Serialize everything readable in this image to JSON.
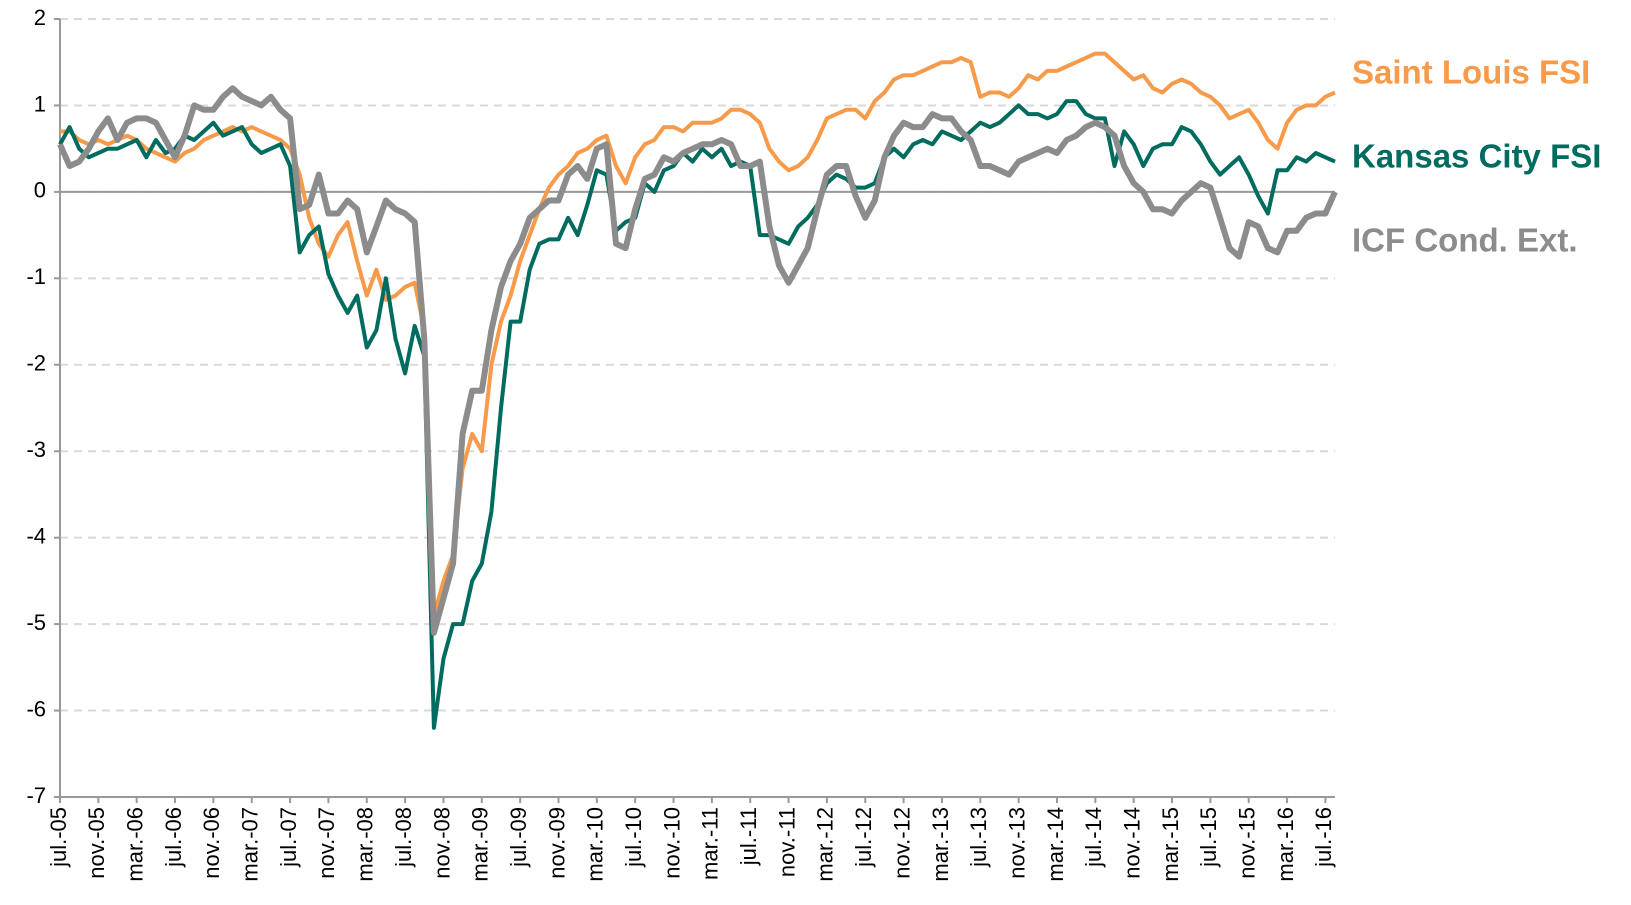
{
  "chart_data": {
    "type": "line",
    "categories": [
      "jul.-05",
      null,
      null,
      null,
      "nov.-05",
      null,
      null,
      null,
      "mar.-06",
      null,
      null,
      null,
      "jul.-06",
      null,
      null,
      null,
      "nov.-06",
      null,
      null,
      null,
      "mar.-07",
      null,
      null,
      null,
      "jul.-07",
      null,
      null,
      null,
      "nov.-07",
      null,
      null,
      null,
      "mar.-08",
      null,
      null,
      null,
      "jul.-08",
      null,
      null,
      null,
      "nov.-08",
      null,
      null,
      null,
      "mar.-09",
      null,
      null,
      null,
      "jul.-09",
      null,
      null,
      null,
      "nov.-09",
      null,
      null,
      null,
      "mar.-10",
      null,
      null,
      null,
      "jul.-10",
      null,
      null,
      null,
      "nov.-10",
      null,
      null,
      null,
      "mar.-11",
      null,
      null,
      null,
      "jul.-11",
      null,
      null,
      null,
      "nov.-11",
      null,
      null,
      null,
      "mar.-12",
      null,
      null,
      null,
      "jul.-12",
      null,
      null,
      null,
      "nov.-12",
      null,
      null,
      null,
      "mar.-13",
      null,
      null,
      null,
      "jul.-13",
      null,
      null,
      null,
      "nov.-13",
      null,
      null,
      null,
      "mar.-14",
      null,
      null,
      null,
      "jul.-14",
      null,
      null,
      null,
      "nov.-14",
      null,
      null,
      null,
      "mar.-15",
      null,
      null,
      null,
      "jul.-15",
      null,
      null,
      null,
      "nov.-15",
      null,
      null,
      null,
      "mar.-16",
      null,
      null,
      null,
      "jul.-16",
      null
    ],
    "series": [
      {
        "name": "Saint Louis FSI",
        "color": "#f79a4a",
        "width": 4,
        "values": [
          0.7,
          0.7,
          0.6,
          0.55,
          0.6,
          0.55,
          0.6,
          0.65,
          0.6,
          0.5,
          0.45,
          0.4,
          0.35,
          0.45,
          0.5,
          0.6,
          0.65,
          0.7,
          0.75,
          0.7,
          0.75,
          0.7,
          0.65,
          0.6,
          0.5,
          0.2,
          -0.3,
          -0.6,
          -0.75,
          -0.5,
          -0.35,
          -0.8,
          -1.2,
          -0.9,
          -1.25,
          -1.2,
          -1.1,
          -1.05,
          -1.6,
          -4.9,
          -4.5,
          -4.2,
          -3.2,
          -2.8,
          -3.0,
          -2.0,
          -1.5,
          -1.2,
          -0.8,
          -0.5,
          -0.2,
          0.05,
          0.2,
          0.3,
          0.45,
          0.5,
          0.6,
          0.65,
          0.3,
          0.1,
          0.4,
          0.55,
          0.6,
          0.75,
          0.75,
          0.7,
          0.8,
          0.8,
          0.8,
          0.85,
          0.95,
          0.95,
          0.9,
          0.8,
          0.5,
          0.35,
          0.25,
          0.3,
          0.4,
          0.6,
          0.85,
          0.9,
          0.95,
          0.95,
          0.85,
          1.05,
          1.15,
          1.3,
          1.35,
          1.35,
          1.4,
          1.45,
          1.5,
          1.5,
          1.55,
          1.5,
          1.1,
          1.15,
          1.15,
          1.1,
          1.2,
          1.35,
          1.3,
          1.4,
          1.4,
          1.45,
          1.5,
          1.55,
          1.6,
          1.6,
          1.5,
          1.4,
          1.3,
          1.35,
          1.2,
          1.15,
          1.25,
          1.3,
          1.25,
          1.15,
          1.1,
          1.0,
          0.85,
          0.9,
          0.95,
          0.8,
          0.6,
          0.5,
          0.8,
          0.95,
          1.0,
          1.0,
          1.1,
          1.15
        ]
      },
      {
        "name": "Kansas City FSI",
        "color": "#006b5f",
        "width": 4,
        "values": [
          0.55,
          0.75,
          0.5,
          0.4,
          0.45,
          0.5,
          0.5,
          0.55,
          0.6,
          0.4,
          0.6,
          0.45,
          0.5,
          0.65,
          0.6,
          0.7,
          0.8,
          0.65,
          0.7,
          0.75,
          0.55,
          0.45,
          0.5,
          0.55,
          0.3,
          -0.7,
          -0.5,
          -0.4,
          -0.95,
          -1.2,
          -1.4,
          -1.2,
          -1.8,
          -1.6,
          -1.0,
          -1.7,
          -2.1,
          -1.55,
          -1.9,
          -6.2,
          -5.4,
          -5.0,
          -5.0,
          -4.5,
          -4.3,
          -3.7,
          -2.5,
          -1.5,
          -1.5,
          -0.9,
          -0.6,
          -0.55,
          -0.55,
          -0.3,
          -0.5,
          -0.15,
          0.25,
          0.2,
          -0.45,
          -0.35,
          -0.3,
          0.1,
          0.0,
          0.25,
          0.3,
          0.45,
          0.35,
          0.5,
          0.4,
          0.5,
          0.3,
          0.35,
          0.3,
          -0.5,
          -0.5,
          -0.55,
          -0.6,
          -0.4,
          -0.3,
          -0.15,
          0.1,
          0.2,
          0.15,
          0.05,
          0.05,
          0.1,
          0.4,
          0.5,
          0.4,
          0.55,
          0.6,
          0.55,
          0.7,
          0.65,
          0.6,
          0.7,
          0.8,
          0.75,
          0.8,
          0.9,
          1.0,
          0.9,
          0.9,
          0.85,
          0.9,
          1.05,
          1.05,
          0.9,
          0.85,
          0.85,
          0.3,
          0.7,
          0.55,
          0.3,
          0.5,
          0.55,
          0.55,
          0.75,
          0.7,
          0.55,
          0.35,
          0.2,
          0.3,
          0.4,
          0.2,
          -0.05,
          -0.25,
          0.25,
          0.25,
          0.4,
          0.35,
          0.45,
          0.4,
          0.35
        ]
      },
      {
        "name": "ICF Cond. Ext.",
        "color": "#8c8c8c",
        "width": 6,
        "values": [
          0.55,
          0.3,
          0.35,
          0.5,
          0.7,
          0.85,
          0.6,
          0.8,
          0.85,
          0.85,
          0.8,
          0.6,
          0.4,
          0.65,
          1.0,
          0.95,
          0.95,
          1.1,
          1.2,
          1.1,
          1.05,
          1.0,
          1.1,
          0.95,
          0.85,
          -0.2,
          -0.15,
          0.2,
          -0.25,
          -0.25,
          -0.1,
          -0.2,
          -0.7,
          -0.4,
          -0.1,
          -0.2,
          -0.25,
          -0.35,
          -1.7,
          -5.1,
          -4.7,
          -4.3,
          -2.8,
          -2.3,
          -2.3,
          -1.6,
          -1.1,
          -0.8,
          -0.6,
          -0.3,
          -0.2,
          -0.1,
          -0.1,
          0.2,
          0.3,
          0.15,
          0.5,
          0.55,
          -0.6,
          -0.65,
          -0.2,
          0.15,
          0.2,
          0.4,
          0.35,
          0.45,
          0.5,
          0.55,
          0.55,
          0.6,
          0.55,
          0.3,
          0.3,
          0.35,
          -0.4,
          -0.85,
          -1.05,
          -0.85,
          -0.65,
          -0.2,
          0.2,
          0.3,
          0.3,
          -0.05,
          -0.3,
          -0.1,
          0.4,
          0.65,
          0.8,
          0.75,
          0.75,
          0.9,
          0.85,
          0.85,
          0.7,
          0.6,
          0.3,
          0.3,
          0.25,
          0.2,
          0.35,
          0.4,
          0.45,
          0.5,
          0.45,
          0.6,
          0.65,
          0.75,
          0.8,
          0.75,
          0.65,
          0.3,
          0.1,
          0.0,
          -0.2,
          -0.2,
          -0.25,
          -0.1,
          0.0,
          0.1,
          0.05,
          -0.3,
          -0.65,
          -0.75,
          -0.35,
          -0.4,
          -0.65,
          -0.7,
          -0.45,
          -0.45,
          -0.3,
          -0.25,
          -0.25,
          0.0
        ]
      }
    ],
    "ylim": [
      -7,
      2
    ],
    "yticks": [
      -7,
      -6,
      -5,
      -4,
      -3,
      -2,
      -1,
      0,
      1,
      2
    ],
    "grid": true,
    "legend": "right"
  }
}
